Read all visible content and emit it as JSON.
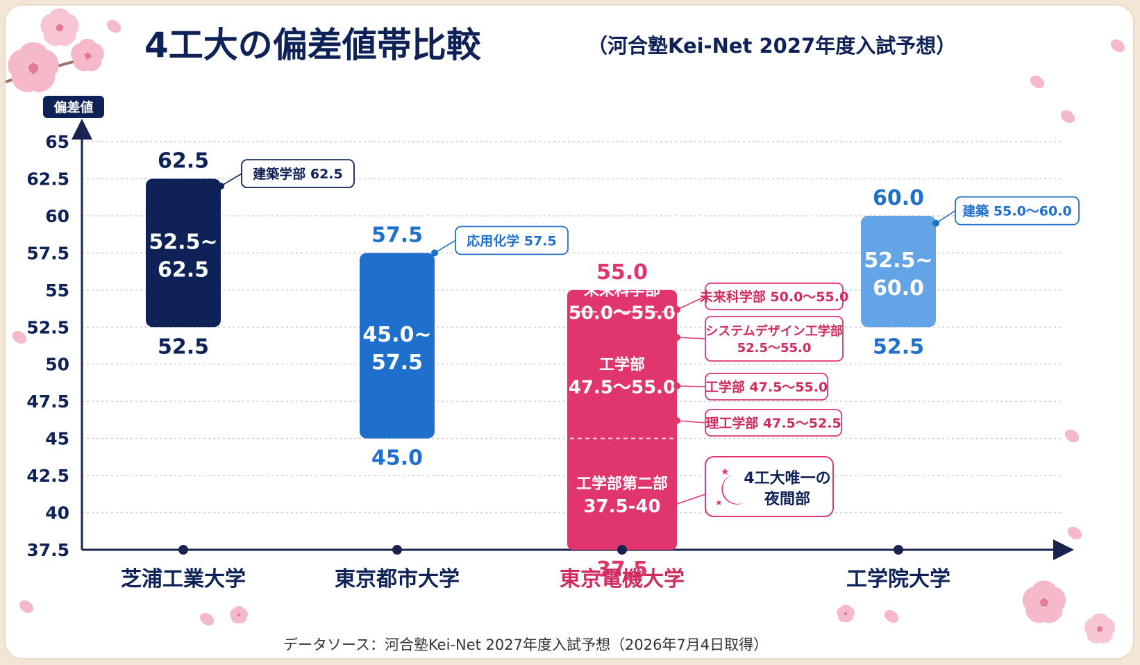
{
  "title": {
    "main": "4工大の偏差値帯比較",
    "sub": "（河合塾Kei-Net 2027年度入試予想）"
  },
  "source_note": "データソース：河合塾Kei-Net 2027年度入試予想（2026年7月4日取得）",
  "colors": {
    "navy": "#0f2257",
    "blue": "#1f6fcc",
    "lightblue": "#63a4e6",
    "pink": "#e0356d",
    "pinkdark": "#d02a5e",
    "grid": "#c8ccd4",
    "axis": "#1a2350"
  },
  "chart_data": {
    "type": "range-bar",
    "ylabel": "偏差値",
    "xlabel": "",
    "ylim": [
      37.5,
      65
    ],
    "y_ticks": [
      65,
      62.5,
      60,
      57.5,
      55,
      52.5,
      50,
      47.5,
      45,
      42.5,
      40,
      37.5
    ],
    "y_tick_labels": [
      "65",
      "62.5",
      "60",
      "57.5",
      "55",
      "52.5",
      "50",
      "47.5",
      "45",
      "42.5",
      "40",
      "37.5"
    ],
    "grid": true,
    "categories": [
      "芝浦工業大学",
      "東京都市大学",
      "東京電機大学",
      "工学院大学"
    ],
    "bars": [
      {
        "category": "芝浦工業大学",
        "low": 52.5,
        "high": 62.5,
        "low_label": "52.5",
        "high_label": "62.5",
        "center_line1": "52.5~",
        "center_line2": "62.5",
        "color": "#0f2257",
        "label_color": "#0f2257",
        "callouts": [
          {
            "text": "建築学部 62.5",
            "at": 62.0
          }
        ]
      },
      {
        "category": "東京都市大学",
        "low": 45.0,
        "high": 57.5,
        "low_label": "45.0",
        "high_label": "57.5",
        "center_line1": "45.0~",
        "center_line2": "57.5",
        "color": "#1f6fcc",
        "label_color": "#1f6fcc",
        "callouts": [
          {
            "text": "応用化学 57.5",
            "at": 57.5
          }
        ]
      },
      {
        "category": "東京電機大学",
        "low": 37.5,
        "high": 55.0,
        "low_label": "37.5",
        "high_label": "55.0",
        "color": "#e0356d",
        "label_color": "#e0356d",
        "segments": [
          {
            "low": 50.0,
            "high": 55.0,
            "line1": "未来科学部",
            "line2": "50.0～55.0"
          },
          {
            "low": 47.5,
            "high": 55.0,
            "line1": "工学部",
            "line2": "47.5～55.0"
          },
          {
            "low": 37.5,
            "high": 40.0,
            "line1": "工学部第二部",
            "line2": "37.5-40"
          }
        ],
        "callouts": [
          {
            "text": "未来科学部 50.0～55.0"
          },
          {
            "text": "システムデザイン工学部",
            "text2": "52.5～55.0"
          },
          {
            "text": "工学部 47.5～55.0"
          },
          {
            "text": "理工学部 47.5～52.5"
          }
        ],
        "night_note": {
          "line1": "4工大唯一の",
          "line2": "夜間部"
        }
      },
      {
        "category": "工学院大学",
        "low": 52.5,
        "high": 60.0,
        "low_label": "52.5",
        "high_label": "60.0",
        "center_line1": "52.5~",
        "center_line2": "60.0",
        "color": "#63a4e6",
        "label_color": "#1f6fcc",
        "callouts": [
          {
            "text": "建築 55.0～60.0",
            "at": 59.5
          }
        ]
      }
    ]
  }
}
